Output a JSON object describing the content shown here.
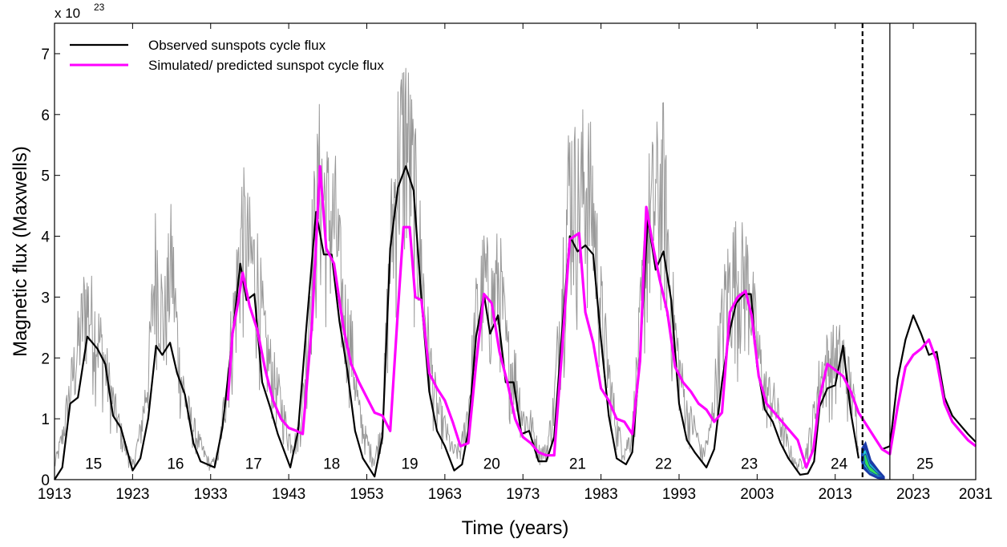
{
  "chart_data": {
    "type": "line",
    "xlabel": "Time (years)",
    "ylabel": "Magnetic flux (Maxwells)",
    "y_multiplier": "x 10",
    "y_multiplier_exp": "23",
    "xlim": [
      1913,
      2031
    ],
    "ylim": [
      0,
      7.5
    ],
    "x_ticks": [
      1913,
      1923,
      1933,
      1943,
      1953,
      1963,
      1973,
      1983,
      1993,
      2003,
      2013,
      2023,
      2031
    ],
    "y_ticks": [
      0,
      1,
      2,
      3,
      4,
      5,
      6,
      7
    ],
    "legend": {
      "placement": "top-left",
      "entries": [
        "Observed sunspots cycle flux",
        "Simulated/ predicted sunspot cycle flux"
      ]
    },
    "cycle_labels": [
      {
        "label": "15",
        "x": 1918.0,
        "y": 0.27
      },
      {
        "label": "16",
        "x": 1928.5,
        "y": 0.27
      },
      {
        "label": "17",
        "x": 1938.5,
        "y": 0.27
      },
      {
        "label": "18",
        "x": 1948.5,
        "y": 0.27
      },
      {
        "label": "19",
        "x": 1958.5,
        "y": 0.27
      },
      {
        "label": "20",
        "x": 1969.0,
        "y": 0.27
      },
      {
        "label": "21",
        "x": 1980.0,
        "y": 0.27
      },
      {
        "label": "22",
        "x": 1991.0,
        "y": 0.27
      },
      {
        "label": "23",
        "x": 2002.0,
        "y": 0.27
      },
      {
        "label": "24",
        "x": 2013.5,
        "y": 0.27
      },
      {
        "label": "25",
        "x": 2024.5,
        "y": 0.27
      }
    ],
    "vlines": [
      {
        "x": 2016.5,
        "style": "dashed"
      },
      {
        "x": 2020.0,
        "style": "solid"
      }
    ],
    "colors": {
      "observed": "#000000",
      "simulated": "#ff00ff",
      "monthly": "#999999",
      "band_outer": "#1a3aa8",
      "band_mid": "#1fc7d4",
      "band_inner": "#2fe05a"
    },
    "series": [
      {
        "name": "Observed sunspots cycle flux",
        "points": [
          [
            1913.0,
            0.0
          ],
          [
            1914.0,
            0.2
          ],
          [
            1915.0,
            1.25
          ],
          [
            1916.0,
            1.35
          ],
          [
            1917.2,
            2.35
          ],
          [
            1918.5,
            2.15
          ],
          [
            1919.5,
            1.9
          ],
          [
            1920.5,
            1.05
          ],
          [
            1921.5,
            0.85
          ],
          [
            1923.0,
            0.15
          ],
          [
            1924.0,
            0.35
          ],
          [
            1925.0,
            1.0
          ],
          [
            1926.0,
            2.2
          ],
          [
            1926.8,
            2.05
          ],
          [
            1927.8,
            2.25
          ],
          [
            1928.7,
            1.75
          ],
          [
            1929.7,
            1.4
          ],
          [
            1930.8,
            0.6
          ],
          [
            1931.7,
            0.3
          ],
          [
            1933.5,
            0.2
          ],
          [
            1934.5,
            0.85
          ],
          [
            1935.5,
            2.0
          ],
          [
            1936.8,
            3.55
          ],
          [
            1937.6,
            2.95
          ],
          [
            1938.6,
            3.05
          ],
          [
            1939.6,
            1.6
          ],
          [
            1940.6,
            1.2
          ],
          [
            1941.6,
            0.75
          ],
          [
            1943.2,
            0.2
          ],
          [
            1944.2,
            0.8
          ],
          [
            1945.2,
            2.4
          ],
          [
            1946.5,
            4.4
          ],
          [
            1947.5,
            3.7
          ],
          [
            1948.5,
            3.7
          ],
          [
            1949.5,
            2.6
          ],
          [
            1950.5,
            1.8
          ],
          [
            1951.5,
            0.8
          ],
          [
            1952.5,
            0.35
          ],
          [
            1954.0,
            0.05
          ],
          [
            1955.0,
            0.7
          ],
          [
            1956.0,
            3.8
          ],
          [
            1957.0,
            4.8
          ],
          [
            1958.0,
            5.15
          ],
          [
            1959.0,
            4.75
          ],
          [
            1960.0,
            2.95
          ],
          [
            1961.0,
            1.45
          ],
          [
            1962.0,
            0.8
          ],
          [
            1963.0,
            0.55
          ],
          [
            1964.2,
            0.15
          ],
          [
            1965.2,
            0.25
          ],
          [
            1966.0,
            0.8
          ],
          [
            1967.0,
            2.35
          ],
          [
            1968.0,
            3.05
          ],
          [
            1968.8,
            2.4
          ],
          [
            1969.8,
            2.7
          ],
          [
            1970.8,
            1.6
          ],
          [
            1971.8,
            1.6
          ],
          [
            1972.8,
            0.75
          ],
          [
            1973.8,
            0.8
          ],
          [
            1975.0,
            0.3
          ],
          [
            1976.0,
            0.3
          ],
          [
            1977.0,
            0.7
          ],
          [
            1978.0,
            2.4
          ],
          [
            1979.0,
            4.0
          ],
          [
            1980.0,
            3.75
          ],
          [
            1981.0,
            3.85
          ],
          [
            1982.0,
            3.7
          ],
          [
            1983.0,
            2.3
          ],
          [
            1984.0,
            1.05
          ],
          [
            1985.0,
            0.35
          ],
          [
            1986.2,
            0.25
          ],
          [
            1987.0,
            0.45
          ],
          [
            1988.0,
            2.05
          ],
          [
            1989.0,
            4.3
          ],
          [
            1990.0,
            3.45
          ],
          [
            1991.0,
            3.75
          ],
          [
            1992.0,
            2.95
          ],
          [
            1993.0,
            1.25
          ],
          [
            1994.0,
            0.65
          ],
          [
            1995.0,
            0.45
          ],
          [
            1996.5,
            0.2
          ],
          [
            1997.5,
            0.5
          ],
          [
            1998.5,
            1.6
          ],
          [
            1999.5,
            2.45
          ],
          [
            2000.3,
            2.9
          ],
          [
            2001.3,
            3.05
          ],
          [
            2002.2,
            3.05
          ],
          [
            2003.0,
            1.85
          ],
          [
            2004.0,
            1.15
          ],
          [
            2005.0,
            0.95
          ],
          [
            2006.0,
            0.6
          ],
          [
            2007.0,
            0.35
          ],
          [
            2008.5,
            0.08
          ],
          [
            2009.5,
            0.1
          ],
          [
            2010.3,
            0.3
          ],
          [
            2011.0,
            1.2
          ],
          [
            2012.0,
            1.5
          ],
          [
            2013.0,
            1.55
          ],
          [
            2014.0,
            2.2
          ],
          [
            2015.0,
            1.1
          ],
          [
            2016.0,
            0.35
          ]
        ]
      },
      {
        "name": "",
        "points": [
          [
            2019.0,
            0.5
          ],
          [
            2020.0,
            0.55
          ],
          [
            2021.0,
            1.65
          ],
          [
            2022.0,
            2.3
          ],
          [
            2023.0,
            2.7
          ],
          [
            2024.0,
            2.4
          ],
          [
            2025.0,
            2.05
          ],
          [
            2026.0,
            2.1
          ],
          [
            2027.0,
            1.35
          ],
          [
            2028.0,
            1.05
          ],
          [
            2029.0,
            0.9
          ],
          [
            2030.0,
            0.75
          ],
          [
            2031.0,
            0.62
          ]
        ]
      },
      {
        "name": "Simulated/ predicted sunspot cycle flux",
        "points": [
          [
            1935.2,
            1.3
          ],
          [
            1935.8,
            2.4
          ],
          [
            1936.5,
            2.9
          ],
          [
            1937.1,
            3.4
          ],
          [
            1938.0,
            2.85
          ],
          [
            1939.0,
            2.45
          ],
          [
            1940.0,
            1.8
          ],
          [
            1941.0,
            1.3
          ],
          [
            1942.0,
            1.0
          ],
          [
            1943.0,
            0.85
          ],
          [
            1944.0,
            0.8
          ],
          [
            1944.8,
            0.75
          ],
          [
            1946.0,
            2.6
          ],
          [
            1947.0,
            5.15
          ],
          [
            1947.8,
            3.8
          ],
          [
            1948.8,
            3.55
          ],
          [
            1950.0,
            2.5
          ],
          [
            1951.0,
            1.9
          ],
          [
            1952.0,
            1.6
          ],
          [
            1953.0,
            1.35
          ],
          [
            1954.0,
            1.1
          ],
          [
            1955.0,
            1.05
          ],
          [
            1956.0,
            0.8
          ],
          [
            1957.0,
            2.8
          ],
          [
            1957.7,
            4.15
          ],
          [
            1958.5,
            4.15
          ],
          [
            1959.2,
            3.0
          ],
          [
            1960.0,
            2.95
          ],
          [
            1961.0,
            1.75
          ],
          [
            1962.0,
            1.5
          ],
          [
            1963.0,
            1.3
          ],
          [
            1964.0,
            0.95
          ],
          [
            1965.0,
            0.55
          ],
          [
            1966.0,
            0.6
          ],
          [
            1967.0,
            1.9
          ],
          [
            1968.0,
            3.05
          ],
          [
            1969.0,
            2.9
          ],
          [
            1970.0,
            2.1
          ],
          [
            1971.0,
            1.6
          ],
          [
            1972.0,
            1.0
          ],
          [
            1973.0,
            0.7
          ],
          [
            1974.0,
            0.6
          ],
          [
            1975.0,
            0.45
          ],
          [
            1976.0,
            0.4
          ],
          [
            1977.0,
            0.4
          ],
          [
            1978.0,
            2.1
          ],
          [
            1979.0,
            3.95
          ],
          [
            1980.2,
            4.05
          ],
          [
            1981.0,
            2.75
          ],
          [
            1982.0,
            2.25
          ],
          [
            1983.0,
            1.5
          ],
          [
            1984.0,
            1.3
          ],
          [
            1985.0,
            1.0
          ],
          [
            1986.0,
            0.95
          ],
          [
            1987.0,
            0.75
          ],
          [
            1988.0,
            1.95
          ],
          [
            1988.8,
            4.48
          ],
          [
            1989.8,
            3.75
          ],
          [
            1990.5,
            3.3
          ],
          [
            1991.5,
            2.75
          ],
          [
            1992.5,
            1.85
          ],
          [
            1993.5,
            1.6
          ],
          [
            1994.5,
            1.45
          ],
          [
            1995.5,
            1.25
          ],
          [
            1996.5,
            1.15
          ],
          [
            1997.5,
            0.95
          ],
          [
            1998.5,
            1.1
          ],
          [
            1999.5,
            2.75
          ],
          [
            2000.5,
            3.0
          ],
          [
            2001.5,
            3.1
          ],
          [
            2002.3,
            2.7
          ],
          [
            2003.2,
            1.7
          ],
          [
            2004.2,
            1.25
          ],
          [
            2005.2,
            1.1
          ],
          [
            2006.2,
            0.95
          ],
          [
            2007.2,
            0.8
          ],
          [
            2008.2,
            0.65
          ],
          [
            2009.3,
            0.2
          ],
          [
            2010.2,
            0.5
          ],
          [
            2011.0,
            1.35
          ],
          [
            2012.0,
            1.9
          ],
          [
            2013.0,
            1.8
          ],
          [
            2014.0,
            1.7
          ],
          [
            2015.0,
            1.45
          ],
          [
            2016.0,
            1.1
          ],
          [
            2017.0,
            0.9
          ],
          [
            2018.0,
            0.7
          ],
          [
            2019.0,
            0.5
          ],
          [
            2020.0,
            0.42
          ],
          [
            2021.0,
            1.2
          ],
          [
            2022.0,
            1.85
          ],
          [
            2023.0,
            2.05
          ],
          [
            2024.0,
            2.15
          ],
          [
            2025.0,
            2.3
          ],
          [
            2026.0,
            1.95
          ],
          [
            2027.0,
            1.25
          ],
          [
            2028.0,
            0.95
          ],
          [
            2029.0,
            0.8
          ],
          [
            2030.0,
            0.65
          ],
          [
            2031.0,
            0.55
          ]
        ]
      }
    ],
    "monthly_envelope": [
      [
        1913,
        0.3
      ],
      [
        1914,
        0.9
      ],
      [
        1915,
        1.9
      ],
      [
        1916,
        2.8
      ],
      [
        1917,
        3.8
      ],
      [
        1918,
        3.3
      ],
      [
        1919,
        2.8
      ],
      [
        1920,
        2.0
      ],
      [
        1921,
        1.3
      ],
      [
        1922,
        0.7
      ],
      [
        1923,
        0.3
      ],
      [
        1924,
        1.0
      ],
      [
        1925,
        2.2
      ],
      [
        1926,
        4.8
      ],
      [
        1927,
        3.2
      ],
      [
        1928,
        4.7
      ],
      [
        1929,
        2.4
      ],
      [
        1930,
        1.5
      ],
      [
        1931,
        1.0
      ],
      [
        1932,
        0.6
      ],
      [
        1933,
        0.3
      ],
      [
        1934,
        0.5
      ],
      [
        1935,
        2.0
      ],
      [
        1936,
        3.5
      ],
      [
        1937,
        5.3
      ],
      [
        1938,
        4.7
      ],
      [
        1939,
        4.3
      ],
      [
        1940,
        2.8
      ],
      [
        1941,
        2.2
      ],
      [
        1942,
        1.6
      ],
      [
        1943,
        0.9
      ],
      [
        1944,
        0.8
      ],
      [
        1945,
        1.9
      ],
      [
        1946,
        4.8
      ],
      [
        1947,
        6.4
      ],
      [
        1948,
        5.6
      ],
      [
        1949,
        5.4
      ],
      [
        1950,
        3.6
      ],
      [
        1951,
        2.9
      ],
      [
        1952,
        1.4
      ],
      [
        1953,
        0.8
      ],
      [
        1954,
        0.4
      ],
      [
        1955,
        1.2
      ],
      [
        1956,
        4.8
      ],
      [
        1957,
        6.8
      ],
      [
        1958,
        7.4
      ],
      [
        1959,
        6.2
      ],
      [
        1960,
        4.5
      ],
      [
        1961,
        2.6
      ],
      [
        1962,
        1.5
      ],
      [
        1963,
        1.1
      ],
      [
        1964,
        0.6
      ],
      [
        1965,
        0.6
      ],
      [
        1966,
        1.5
      ],
      [
        1967,
        3.4
      ],
      [
        1968,
        4.2
      ],
      [
        1969,
        3.8
      ],
      [
        1970,
        4.3
      ],
      [
        1971,
        2.6
      ],
      [
        1972,
        2.3
      ],
      [
        1973,
        1.3
      ],
      [
        1974,
        1.2
      ],
      [
        1975,
        0.6
      ],
      [
        1976,
        0.6
      ],
      [
        1977,
        1.6
      ],
      [
        1978,
        4.1
      ],
      [
        1979,
        6.4
      ],
      [
        1980,
        5.8
      ],
      [
        1981,
        6.4
      ],
      [
        1982,
        5.7
      ],
      [
        1983,
        3.6
      ],
      [
        1984,
        2.2
      ],
      [
        1985,
        1.1
      ],
      [
        1986,
        0.6
      ],
      [
        1987,
        1.0
      ],
      [
        1988,
        3.2
      ],
      [
        1989,
        5.4
      ],
      [
        1990,
        5.9
      ],
      [
        1991,
        6.3
      ],
      [
        1992,
        3.8
      ],
      [
        1993,
        2.4
      ],
      [
        1994,
        1.4
      ],
      [
        1995,
        1.1
      ],
      [
        1996,
        0.5
      ],
      [
        1997,
        1.0
      ],
      [
        1998,
        2.6
      ],
      [
        1999,
        3.9
      ],
      [
        2000,
        4.4
      ],
      [
        2001,
        4.3
      ],
      [
        2002,
        4.2
      ],
      [
        2003,
        2.8
      ],
      [
        2004,
        1.9
      ],
      [
        2005,
        1.7
      ],
      [
        2006,
        1.2
      ],
      [
        2007,
        0.7
      ],
      [
        2008,
        0.3
      ],
      [
        2009,
        0.4
      ],
      [
        2010,
        1.1
      ],
      [
        2011,
        2.1
      ],
      [
        2012,
        2.5
      ],
      [
        2013,
        2.6
      ],
      [
        2014,
        2.6
      ],
      [
        2015,
        1.9
      ],
      [
        2016,
        1.1
      ]
    ]
  }
}
